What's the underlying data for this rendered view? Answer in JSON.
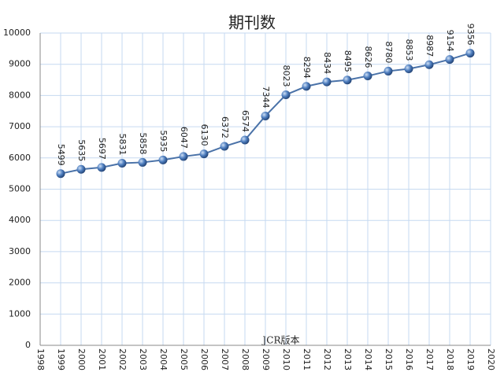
{
  "chart_data": {
    "type": "line",
    "title": "期刊数",
    "x_label": "JCR版本",
    "x": [
      1999,
      2000,
      2001,
      2002,
      2003,
      2004,
      2005,
      2006,
      2007,
      2008,
      2009,
      2010,
      2011,
      2012,
      2013,
      2014,
      2015,
      2016,
      2017,
      2018,
      2019
    ],
    "series": [
      {
        "name": "期刊数",
        "color": "#4a72a8",
        "values": [
          5499,
          5635,
          5697,
          5831,
          5858,
          5935,
          6047,
          6130,
          6372,
          6574,
          7344,
          8023,
          8294,
          8434,
          8495,
          8626,
          8780,
          8853,
          8987,
          9154,
          9356
        ]
      }
    ],
    "xlim": [
      1998,
      2020
    ],
    "xticks": [
      1998,
      1999,
      2000,
      2001,
      2002,
      2003,
      2004,
      2005,
      2006,
      2007,
      2008,
      2009,
      2010,
      2011,
      2012,
      2013,
      2014,
      2015,
      2016,
      2017,
      2018,
      2019,
      2020
    ],
    "ylim": [
      0,
      10000
    ],
    "yticks": [
      0,
      1000,
      2000,
      3000,
      4000,
      5000,
      6000,
      7000,
      8000,
      9000,
      10000
    ],
    "grid": true
  }
}
